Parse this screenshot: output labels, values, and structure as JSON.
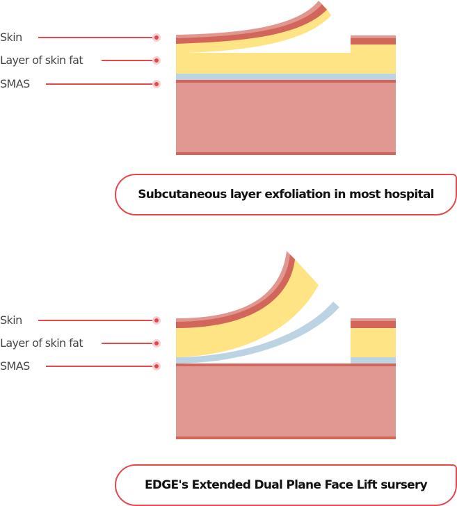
{
  "colors": {
    "skin_pale": "#e1968f",
    "skin": "#d2665a",
    "fat": "#fee484",
    "smas": "#bbd3e3",
    "muscle": "#e19792",
    "muscle_line": "#d2665a",
    "accent": "#e5474b"
  },
  "diagrams": [
    {
      "labels": {
        "skin": "Skin",
        "fat": "Layer of skin fat",
        "smas": "SMAS"
      },
      "caption": "Subcutaneous layer exfoliation in most hospital"
    },
    {
      "labels": {
        "skin": "Skin",
        "fat": "Layer of skin fat",
        "smas": "SMAS"
      },
      "caption": "EDGE's Extended Dual Plane Face Lift sursery"
    }
  ]
}
